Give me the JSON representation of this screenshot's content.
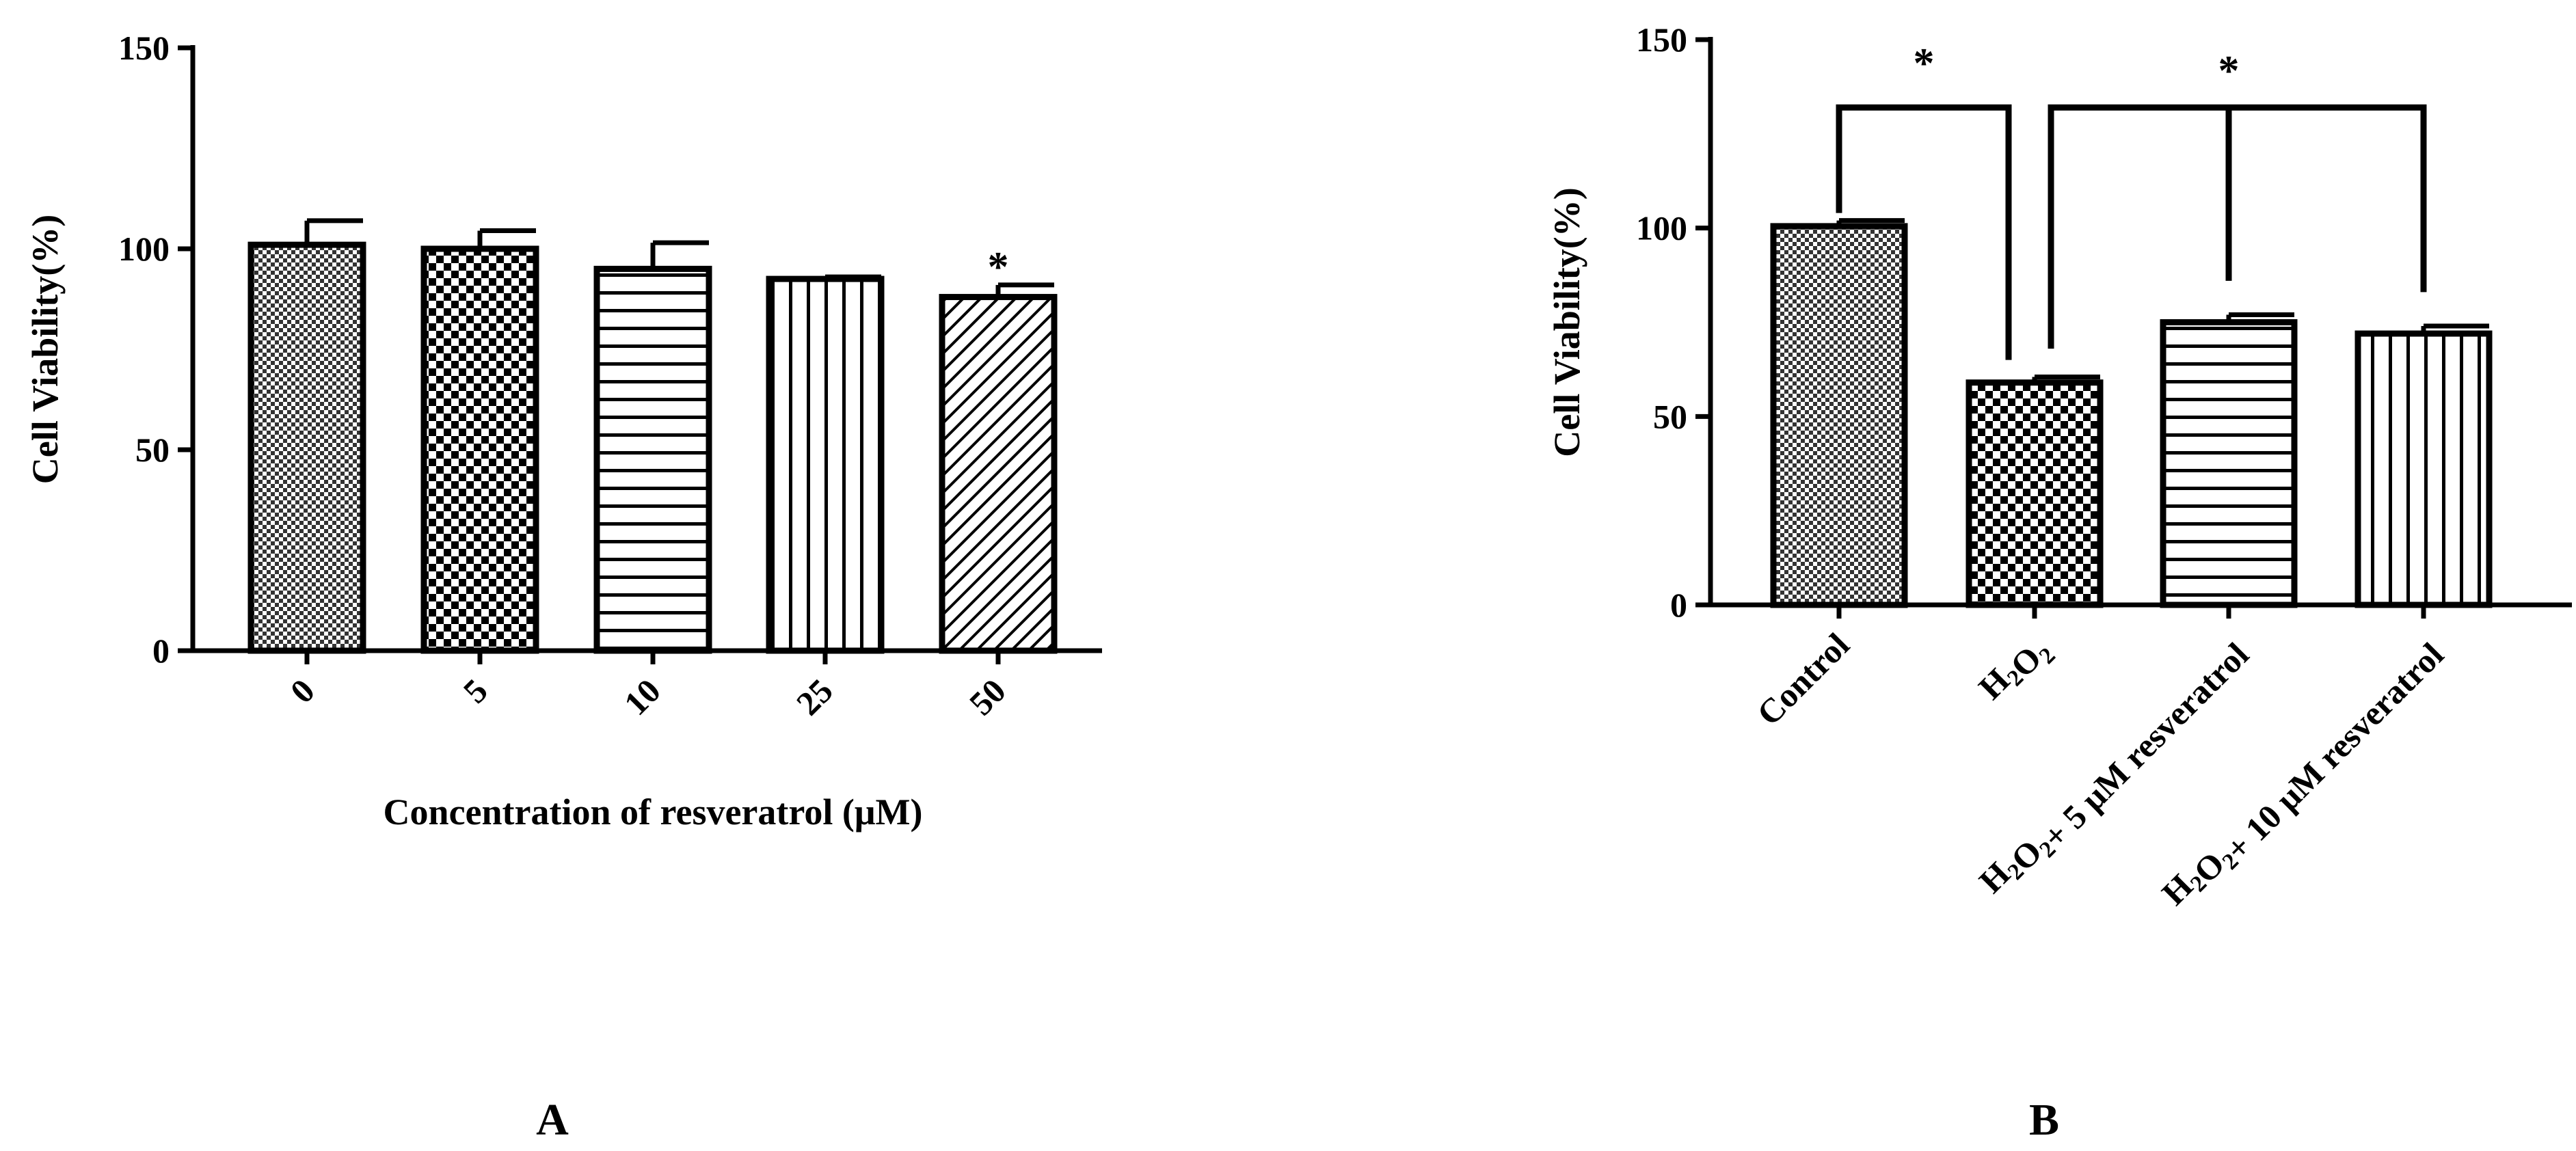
{
  "chart_data": [
    {
      "type": "bar",
      "panel_label": "A",
      "xlabel": "Concentration of resveratrol (μM)",
      "ylabel": "Cell Viability(%)",
      "ylim": [
        0,
        150
      ],
      "yticks": [
        0,
        50,
        100,
        150
      ],
      "categories": [
        "0",
        "5",
        "10",
        "25",
        "50"
      ],
      "values": [
        101,
        100,
        95,
        92.5,
        88
      ],
      "errors": [
        6,
        4.5,
        6.5,
        0.5,
        3
      ],
      "patterns": [
        "fine-checker",
        "checker",
        "horizontal-lines",
        "vertical-lines",
        "diagonal-lines"
      ],
      "annotations": [
        {
          "category": "50",
          "text": "*"
        }
      ],
      "grid": false
    },
    {
      "type": "bar",
      "panel_label": "B",
      "xlabel": "",
      "ylabel": "Cell Viability(%)",
      "ylim": [
        0,
        150
      ],
      "yticks": [
        0,
        50,
        100,
        150
      ],
      "categories": [
        {
          "parts": [
            "Control"
          ]
        },
        {
          "parts": [
            "H",
            "2",
            "O",
            "2"
          ]
        },
        {
          "parts": [
            "H",
            "2",
            "O",
            "2",
            "+ 5 μM resveratrol"
          ]
        },
        {
          "parts": [
            "H",
            "2",
            "O",
            "2",
            "+ 10 μM resveratrol"
          ]
        }
      ],
      "values": [
        100.5,
        59,
        75,
        72
      ],
      "errors": [
        1.5,
        1.5,
        2,
        2
      ],
      "patterns": [
        "fine-checker",
        "checker",
        "horizontal-lines",
        "vertical-lines"
      ],
      "significance": [
        {
          "from": 0,
          "to": 1,
          "text": "*"
        },
        {
          "from": 1,
          "to": [
            2,
            3
          ],
          "text": "*"
        }
      ],
      "grid": false
    }
  ]
}
